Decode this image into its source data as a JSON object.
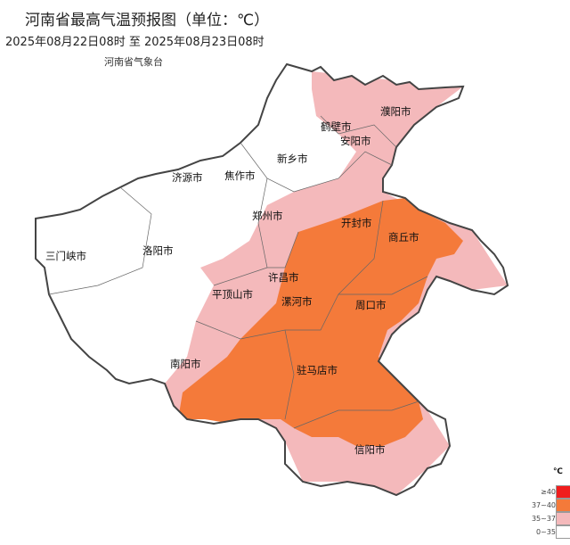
{
  "title": "河南省最高气温预报图（单位：℃）",
  "period": "2025年08月22日08时  至  2025年08月23日08时",
  "agency": "河南省气象台",
  "cities": [
    "濮阳市",
    "鹤壁市",
    "安阳市",
    "新乡市",
    "济源市",
    "焦作市",
    "郑州市",
    "开封市",
    "商丘市",
    "三门峡市",
    "洛阳市",
    "许昌市",
    "平顶山市",
    "漯河市",
    "周口市",
    "南阳市",
    "驻马店市",
    "信阳市"
  ],
  "legend": {
    "unit": "℃",
    "items": [
      {
        "label": "≥40",
        "color": "#f01d1d"
      },
      {
        "label": "37~40",
        "color": "#f47a3a"
      },
      {
        "label": "35~37",
        "color": "#f4b9bb"
      },
      {
        "label": "0~35",
        "color": "#ffffff"
      }
    ]
  }
}
